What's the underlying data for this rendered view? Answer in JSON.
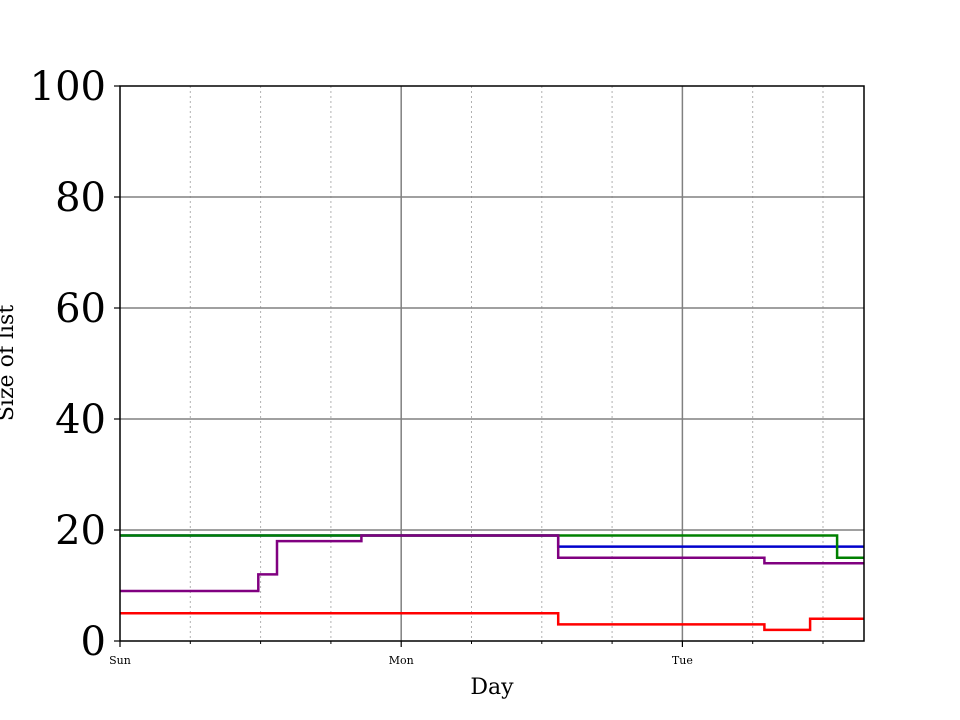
{
  "chart_data": {
    "type": "line",
    "title": "",
    "xlabel": "Day",
    "ylabel": "Size of list",
    "ylim": [
      0,
      100
    ],
    "yticks": [
      0,
      20,
      40,
      60,
      80,
      100
    ],
    "xlim_hours": [
      0,
      63.5
    ],
    "xticks": [
      {
        "hour": 0,
        "label": "Sun"
      },
      {
        "hour": 24,
        "label": "Mon"
      },
      {
        "hour": 48,
        "label": "Tue"
      }
    ],
    "grid": {
      "major": true,
      "minor": true
    },
    "series": [
      {
        "color": "#0000cc",
        "x_hours": [
          0,
          37.4,
          37.4,
          63.5
        ],
        "values": [
          19,
          19,
          17,
          17
        ]
      },
      {
        "color": "#008000",
        "x_hours": [
          0,
          61.2,
          61.2,
          63.5
        ],
        "values": [
          19,
          19,
          15,
          15
        ]
      },
      {
        "color": "#ff0000",
        "x_hours": [
          0,
          37.4,
          37.4,
          55.0,
          55.0,
          58.9,
          58.9,
          63.5
        ],
        "values": [
          5,
          5,
          3,
          3,
          2,
          2,
          4,
          4
        ]
      },
      {
        "color": "#800080",
        "x_hours": [
          0,
          11.8,
          11.8,
          13.4,
          13.4,
          20.6,
          20.6,
          37.4,
          37.4,
          55.0,
          55.0,
          61.2,
          61.2,
          63.5
        ],
        "values": [
          9,
          9,
          12,
          12,
          18,
          18,
          19,
          19,
          15,
          15,
          14,
          14,
          14,
          14
        ]
      }
    ]
  }
}
